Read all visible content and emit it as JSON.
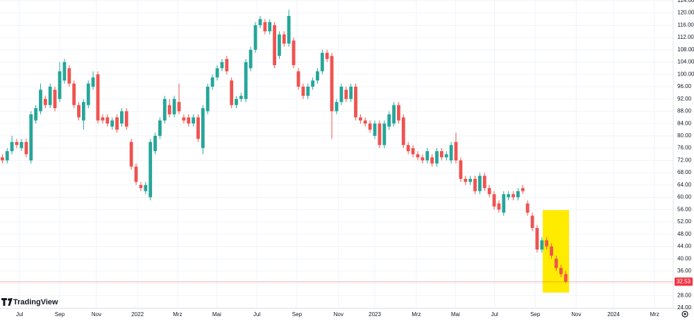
{
  "chart_data": {
    "type": "candlestick",
    "open": [
      73,
      72,
      75,
      78,
      76,
      78,
      72,
      85,
      88,
      92,
      90,
      95,
      92,
      98,
      102,
      97,
      90,
      85,
      90,
      96,
      100,
      86,
      86,
      83,
      86,
      84,
      88,
      78,
      70,
      64,
      62,
      60,
      75,
      80,
      85,
      90,
      87,
      91,
      86,
      86,
      84,
      86,
      76,
      88,
      96,
      99,
      102,
      105,
      98,
      90,
      92,
      92,
      102,
      108,
      116,
      117,
      114,
      116,
      106,
      113,
      110,
      111,
      101,
      96,
      93,
      96,
      98,
      101,
      107,
      106,
      88,
      91,
      95,
      92,
      96,
      86,
      85,
      84,
      80,
      84,
      77,
      83,
      84,
      90,
      86,
      77,
      76,
      74,
      73,
      72,
      73,
      71,
      75,
      73,
      72,
      78,
      72,
      66,
      65,
      66,
      62,
      67,
      63,
      61,
      58,
      55,
      60,
      61,
      60,
      63,
      58,
      54,
      50,
      43,
      46,
      44,
      40,
      37,
      35
    ],
    "high": [
      74,
      76,
      80,
      79,
      79,
      79,
      88,
      90,
      97,
      93,
      97,
      96,
      104,
      105,
      103,
      98,
      91,
      92,
      98,
      101,
      101,
      87,
      87,
      86,
      87,
      89,
      89,
      79,
      71,
      65,
      65,
      79,
      81,
      86,
      93,
      92,
      93,
      97,
      87,
      87,
      87,
      87,
      90,
      97,
      100,
      103,
      105,
      106,
      99,
      93,
      94,
      105,
      109,
      117,
      119,
      118,
      118,
      117,
      114,
      114,
      121,
      112,
      102,
      97,
      97,
      99,
      102,
      108,
      108,
      107,
      92,
      97,
      96,
      97,
      97,
      87,
      86,
      85,
      85,
      85,
      85,
      88,
      91,
      91,
      87,
      78,
      77,
      75,
      74,
      76,
      74,
      76,
      76,
      75,
      78,
      81,
      73,
      67,
      67,
      67,
      68,
      68,
      64,
      62,
      59,
      62,
      62,
      62,
      63,
      64,
      59,
      55,
      51,
      47,
      47,
      45,
      41,
      38,
      36
    ],
    "low": [
      71,
      71,
      74,
      76,
      75,
      73,
      71,
      84,
      87,
      89,
      89,
      88,
      91,
      97,
      96,
      89,
      85,
      82,
      89,
      95,
      84,
      84,
      83,
      82,
      81,
      83,
      82,
      69,
      64,
      62,
      61,
      59,
      74,
      79,
      84,
      86,
      86,
      87,
      84,
      83,
      83,
      78,
      74,
      87,
      95,
      98,
      101,
      100,
      89,
      89,
      91,
      91,
      101,
      107,
      115,
      113,
      113,
      102,
      105,
      109,
      109,
      102,
      95,
      92,
      92,
      95,
      97,
      100,
      104,
      79,
      87,
      90,
      91,
      91,
      85,
      84,
      83,
      81,
      79,
      76,
      76,
      82,
      83,
      84,
      76,
      74,
      73,
      72,
      71,
      71,
      70,
      70,
      72,
      72,
      71,
      71,
      65,
      64,
      64,
      61,
      61,
      62,
      60,
      56,
      55,
      54,
      59,
      59,
      59,
      61,
      54,
      49,
      42,
      42,
      43,
      40,
      36,
      34,
      32
    ],
    "close": [
      72,
      75,
      78,
      77,
      78,
      74,
      87,
      89,
      95,
      90,
      96,
      89,
      101,
      104,
      97,
      90,
      86,
      91,
      97,
      99,
      85,
      85,
      84,
      85,
      82,
      88,
      83,
      70,
      65,
      63,
      64,
      78,
      80,
      85,
      92,
      87,
      92,
      88,
      85,
      84,
      86,
      79,
      89,
      96,
      99,
      102,
      104,
      101,
      90,
      92,
      93,
      104,
      108,
      116,
      118,
      114,
      117,
      103,
      113,
      110,
      119,
      103,
      96,
      93,
      96,
      98,
      101,
      107,
      105,
      88,
      91,
      96,
      92,
      96,
      86,
      85,
      84,
      82,
      84,
      77,
      84,
      87,
      90,
      85,
      77,
      75,
      74,
      73,
      72,
      75,
      71,
      75,
      73,
      74,
      77,
      72,
      66,
      65,
      66,
      62,
      67,
      63,
      61,
      57,
      56,
      61,
      61,
      60,
      62,
      62,
      55,
      50,
      43,
      46,
      44,
      41,
      37,
      35,
      32.53
    ],
    "up_color": "#26a69a",
    "down_color": "#ef5350",
    "last_price": 32.53,
    "last_price_color": "#f23645",
    "xlim": [
      -0.5,
      140.5
    ],
    "xticks": [
      {
        "value": 3.6,
        "label": "Jul"
      },
      {
        "value": 12,
        "label": "Sep"
      },
      {
        "value": 19.7,
        "label": "Nov"
      },
      {
        "value": 28.3,
        "label": "2022"
      },
      {
        "value": 36.7,
        "label": "Mrz"
      },
      {
        "value": 44.9,
        "label": "Mai"
      },
      {
        "value": 53.3,
        "label": "Jul"
      },
      {
        "value": 61.7,
        "label": "Sep"
      },
      {
        "value": 70.4,
        "label": "Nov"
      },
      {
        "value": 78,
        "label": "2023"
      },
      {
        "value": 86.7,
        "label": "Mrz"
      },
      {
        "value": 94.9,
        "label": "Mai"
      },
      {
        "value": 103.1,
        "label": "Jul"
      },
      {
        "value": 111.6,
        "label": "Sep"
      },
      {
        "value": 120.2,
        "label": "Nov"
      },
      {
        "value": 128,
        "label": "2024"
      },
      {
        "value": 136.6,
        "label": "Mrz"
      }
    ],
    "ylim": [
      23.8,
      124.2
    ],
    "yticks": [
      {
        "value": 24,
        "label": "24.00"
      },
      {
        "value": 28,
        "label": "28.00"
      },
      {
        "value": 32,
        "label": "32.00"
      },
      {
        "value": 36,
        "label": "36.00"
      },
      {
        "value": 40,
        "label": "40.00"
      },
      {
        "value": 44,
        "label": "44.00"
      },
      {
        "value": 48,
        "label": "48.00"
      },
      {
        "value": 52,
        "label": "52.00"
      },
      {
        "value": 56,
        "label": "56.00"
      },
      {
        "value": 60,
        "label": "60.00"
      },
      {
        "value": 64,
        "label": "64.00"
      },
      {
        "value": 68,
        "label": "68.00"
      },
      {
        "value": 72,
        "label": "72.00"
      },
      {
        "value": 76,
        "label": "76.00"
      },
      {
        "value": 80,
        "label": "80.00"
      },
      {
        "value": 84,
        "label": "84.00"
      },
      {
        "value": 88,
        "label": "88.00"
      },
      {
        "value": 92,
        "label": "92.00"
      },
      {
        "value": 96,
        "label": "96.00"
      },
      {
        "value": 100,
        "label": "100.00"
      },
      {
        "value": 104,
        "label": "104.00"
      },
      {
        "value": 108,
        "label": "108.00"
      },
      {
        "value": 112,
        "label": "112.00"
      },
      {
        "value": 116,
        "label": "116.00"
      },
      {
        "value": 120,
        "label": "120.00"
      },
      {
        "value": 124,
        "label": "124.00"
      }
    ],
    "grid": true,
    "logo": "TradingView"
  }
}
